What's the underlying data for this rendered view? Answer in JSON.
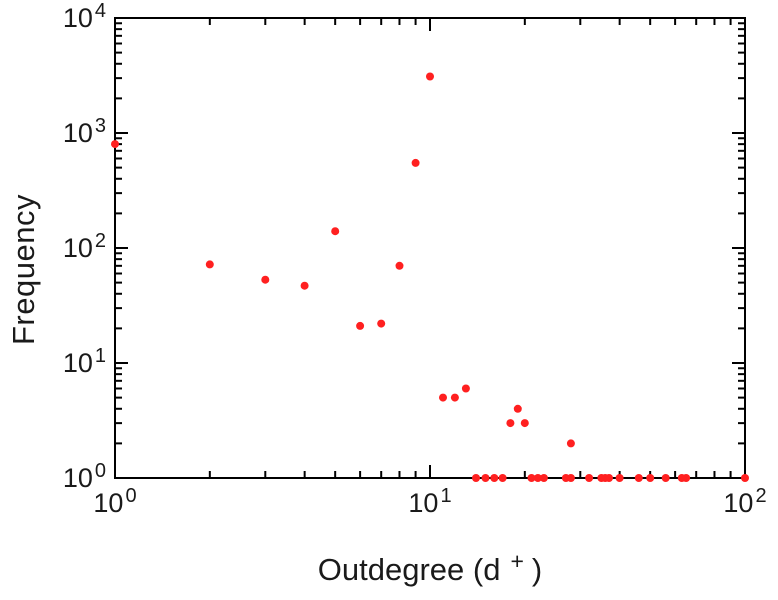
{
  "chart_data": {
    "type": "scatter",
    "title": "",
    "xlabel_prefix": "Outdegree (d",
    "xlabel_sup": "+",
    "xlabel_suffix": ")",
    "ylabel": "Frequency",
    "xscale": "log",
    "yscale": "log",
    "xlim": [
      1,
      100
    ],
    "ylim": [
      1,
      10000
    ],
    "grid": false,
    "legend": "none",
    "axis_color": "#000000",
    "marker": {
      "shape": "circle",
      "color": "#ff2020",
      "radius": 4
    },
    "x_ticks": [
      {
        "value": 1,
        "base": "10",
        "exp": "0"
      },
      {
        "value": 10,
        "base": "10",
        "exp": "1"
      },
      {
        "value": 100,
        "base": "10",
        "exp": "2"
      }
    ],
    "y_ticks": [
      {
        "value": 1,
        "base": "10",
        "exp": "0"
      },
      {
        "value": 10,
        "base": "10",
        "exp": "1"
      },
      {
        "value": 100,
        "base": "10",
        "exp": "2"
      },
      {
        "value": 1000,
        "base": "10",
        "exp": "3"
      },
      {
        "value": 10000,
        "base": "10",
        "exp": "4"
      }
    ],
    "points": [
      [
        1,
        800
      ],
      [
        2,
        72
      ],
      [
        3,
        53
      ],
      [
        4,
        47
      ],
      [
        5,
        140
      ],
      [
        6,
        21
      ],
      [
        7,
        22
      ],
      [
        8,
        70
      ],
      [
        9,
        550
      ],
      [
        10,
        3100
      ],
      [
        11,
        5
      ],
      [
        12,
        5
      ],
      [
        13,
        6
      ],
      [
        14,
        1
      ],
      [
        15,
        1
      ],
      [
        16,
        1
      ],
      [
        17,
        1
      ],
      [
        18,
        3
      ],
      [
        19,
        4
      ],
      [
        20,
        3
      ],
      [
        21,
        1
      ],
      [
        22,
        1
      ],
      [
        23,
        1
      ],
      [
        27,
        1
      ],
      [
        28,
        2
      ],
      [
        28,
        1
      ],
      [
        32,
        1
      ],
      [
        35,
        1
      ],
      [
        36,
        1
      ],
      [
        37,
        1
      ],
      [
        40,
        1
      ],
      [
        46,
        1
      ],
      [
        50,
        1
      ],
      [
        56,
        1
      ],
      [
        63,
        1
      ],
      [
        65,
        1
      ],
      [
        100,
        1
      ]
    ]
  }
}
